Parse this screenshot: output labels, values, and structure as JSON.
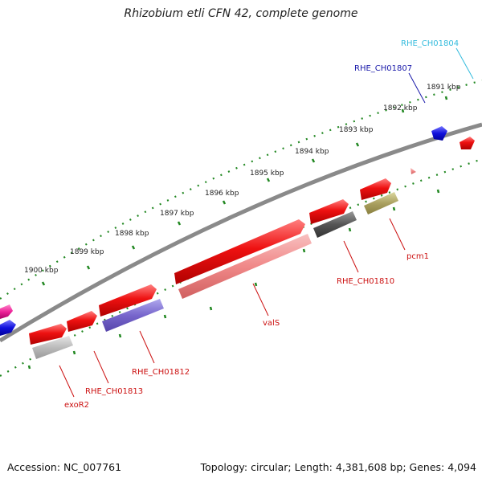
{
  "title": "Rhizobium etli CFN 42, complete genome",
  "accession": "Accession: NC_007761",
  "summary": "Topology: circular; Length: 4,381,608 bp; Genes: 4,094",
  "ruler_labels": [
    "1891 kbp",
    "1892 kbp",
    "1893 kbp",
    "1894 kbp",
    "1895 kbp",
    "1896 kbp",
    "1897 kbp",
    "1898 kbp",
    "1899 kbp",
    "1900 kbp"
  ],
  "gene_labels": [
    {
      "text": "RHE_CH01804",
      "color": "#33bbdd"
    },
    {
      "text": "RHE_CH01807",
      "color": "#1a1aaa"
    },
    {
      "text": "pcm1",
      "color": "#cc1111"
    },
    {
      "text": "RHE_CH01810",
      "color": "#cc1111"
    },
    {
      "text": "valS",
      "color": "#cc1111"
    },
    {
      "text": "RHE_CH01812",
      "color": "#cc1111"
    },
    {
      "text": "RHE_CH01813",
      "color": "#cc1111"
    },
    {
      "text": "exoR2",
      "color": "#cc1111"
    }
  ],
  "colors": {
    "backbone": "#808080",
    "ruler": "#228822",
    "gene_red": "#ee1111",
    "cds_pink": "#f08888",
    "cds_purple": "#7766cc",
    "cds_dark": "#555555",
    "cds_olive": "#aaa060",
    "cds_grey": "#bbbbbb",
    "gene_blue": "#1111dd",
    "gene_magenta": "#ee2299"
  }
}
